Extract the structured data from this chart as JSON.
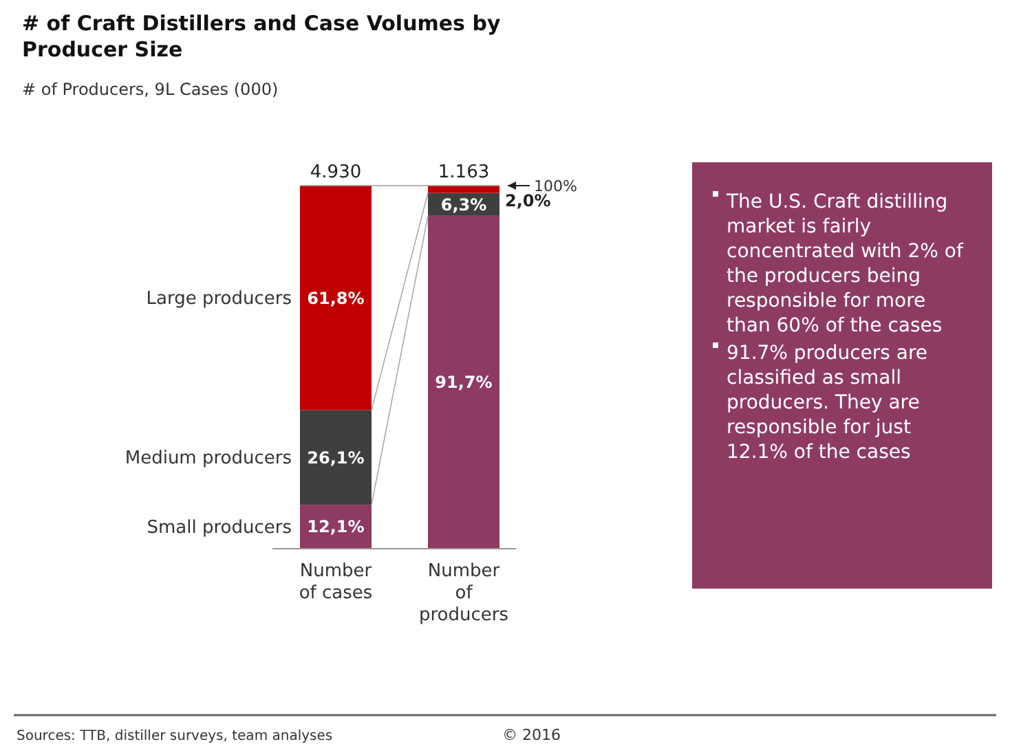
{
  "chart_data": {
    "type": "bar",
    "title": "# of Craft Distillers and Case Volumes by Producer Size",
    "subtitle": "# of Producers, 9L Cases (000)",
    "categories": [
      "Number of cases",
      "Number of producers"
    ],
    "stacked": true,
    "series": [
      {
        "name": "Small producers",
        "color": "#8e3a63",
        "values": [
          12.1,
          91.7
        ],
        "value_labels": [
          "12,1%",
          "91,7%"
        ]
      },
      {
        "name": "Medium producers",
        "color": "#3f3f3f",
        "values": [
          26.1,
          6.3
        ],
        "value_labels": [
          "26,1%",
          "6,3%"
        ]
      },
      {
        "name": "Large producers",
        "color": "#c00000",
        "values": [
          61.8,
          2.0
        ],
        "value_labels": [
          "61,8%",
          "2,0%"
        ]
      }
    ],
    "annotations": [
      {
        "text": "4.930",
        "x": "Number of cases",
        "y": 100
      },
      {
        "text": "1.163",
        "x": "Number of producers",
        "y": 100
      },
      "The U.S. Craft distilling market is fairly concentrated with 2% of the producers being responsible for more than 60% of the cases",
      "91.7% producers are classified as small producers. They are responsible for just 12.1% of the cases",
      "100%",
      "Sources: TTB, distiller surveys, team analyses",
      "© 2016"
    ]
  }
}
